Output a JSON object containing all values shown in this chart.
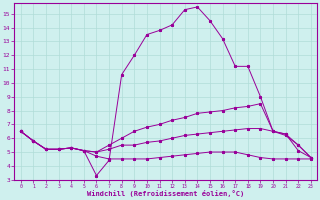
{
  "xlabel": "Windchill (Refroidissement éolien,°C)",
  "background_color": "#cff0ee",
  "grid_color": "#b0ddd8",
  "line_color": "#990099",
  "xlim": [
    -0.5,
    23.5
  ],
  "ylim": [
    3,
    15.8
  ],
  "yticks": [
    3,
    4,
    5,
    6,
    7,
    8,
    9,
    10,
    11,
    12,
    13,
    14,
    15
  ],
  "xticks": [
    0,
    1,
    2,
    3,
    4,
    5,
    6,
    7,
    8,
    9,
    10,
    11,
    12,
    13,
    14,
    15,
    16,
    17,
    18,
    19,
    20,
    21,
    22,
    23
  ],
  "series1_x": [
    0,
    1,
    2,
    3,
    4,
    5,
    6,
    7,
    8,
    9,
    10,
    11,
    12,
    13,
    14,
    15,
    16,
    17,
    18,
    19,
    20,
    21,
    22,
    23
  ],
  "series1_y": [
    6.5,
    5.8,
    5.2,
    5.2,
    5.3,
    5.1,
    3.3,
    4.4,
    10.6,
    12.0,
    13.5,
    13.8,
    14.2,
    15.3,
    15.5,
    14.5,
    13.2,
    11.2,
    11.2,
    9.0,
    6.5,
    6.3,
    5.1,
    4.6
  ],
  "series2_x": [
    0,
    1,
    2,
    3,
    4,
    5,
    6,
    7,
    8,
    9,
    10,
    11,
    12,
    13,
    14,
    15,
    16,
    17,
    18,
    19,
    20,
    21,
    22,
    23
  ],
  "series2_y": [
    6.5,
    5.8,
    5.2,
    5.2,
    5.3,
    5.1,
    5.0,
    5.5,
    6.0,
    6.5,
    6.8,
    7.0,
    7.3,
    7.5,
    7.8,
    7.9,
    8.0,
    8.2,
    8.3,
    8.5,
    6.5,
    6.3,
    5.5,
    4.6
  ],
  "series3_x": [
    0,
    1,
    2,
    3,
    4,
    5,
    6,
    7,
    8,
    9,
    10,
    11,
    12,
    13,
    14,
    15,
    16,
    17,
    18,
    19,
    20,
    21,
    22,
    23
  ],
  "series3_y": [
    6.5,
    5.8,
    5.2,
    5.2,
    5.3,
    5.1,
    5.0,
    5.2,
    5.5,
    5.5,
    5.7,
    5.8,
    6.0,
    6.2,
    6.3,
    6.4,
    6.5,
    6.6,
    6.7,
    6.7,
    6.5,
    6.2,
    5.5,
    4.6
  ],
  "series4_x": [
    0,
    1,
    2,
    3,
    4,
    5,
    6,
    7,
    8,
    9,
    10,
    11,
    12,
    13,
    14,
    15,
    16,
    17,
    18,
    19,
    20,
    21,
    22,
    23
  ],
  "series4_y": [
    6.5,
    5.8,
    5.2,
    5.2,
    5.3,
    5.1,
    4.7,
    4.5,
    4.5,
    4.5,
    4.5,
    4.6,
    4.7,
    4.8,
    4.9,
    5.0,
    5.0,
    5.0,
    4.8,
    4.6,
    4.5,
    4.5,
    4.5,
    4.5
  ]
}
